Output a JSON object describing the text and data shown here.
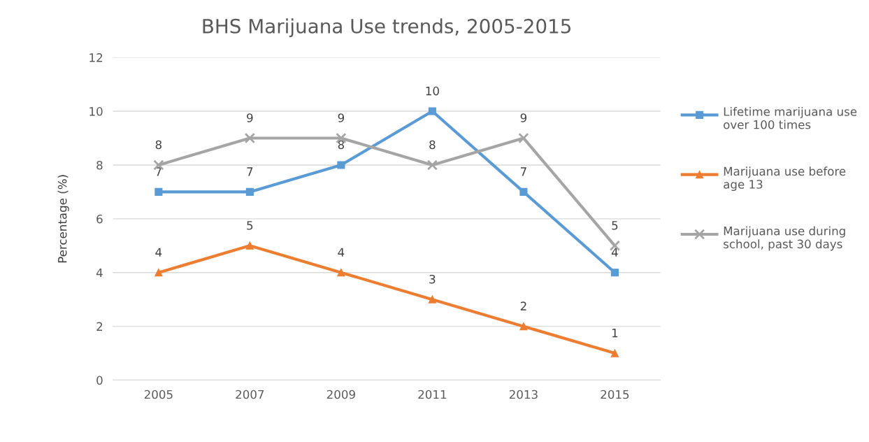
{
  "chart_data": {
    "type": "line",
    "title": "BHS Marijuana Use trends, 2005-2015",
    "ylabel": "Percentage (%)",
    "categories": [
      "2005",
      "2007",
      "2009",
      "2011",
      "2013",
      "2015"
    ],
    "series": [
      {
        "name": "Lifetime marijuana use over 100 times",
        "color": "#5b9bd5",
        "marker": "square",
        "values": [
          7,
          7,
          8,
          10,
          7,
          4
        ]
      },
      {
        "name": "Marijuana use before age 13",
        "color": "#ed7d31",
        "marker": "triangle",
        "values": [
          4,
          5,
          4,
          3,
          2,
          1
        ]
      },
      {
        "name": "Marijuana use during school, past 30 days",
        "color": "#a5a5a5",
        "marker": "cross",
        "values": [
          8,
          9,
          9,
          8,
          9,
          5
        ]
      }
    ],
    "ylim": [
      0,
      12
    ],
    "yticks": [
      0,
      2,
      4,
      6,
      8,
      10,
      12
    ],
    "grid": "y",
    "legend": "right",
    "data_labels": true,
    "line_style": "solid"
  }
}
